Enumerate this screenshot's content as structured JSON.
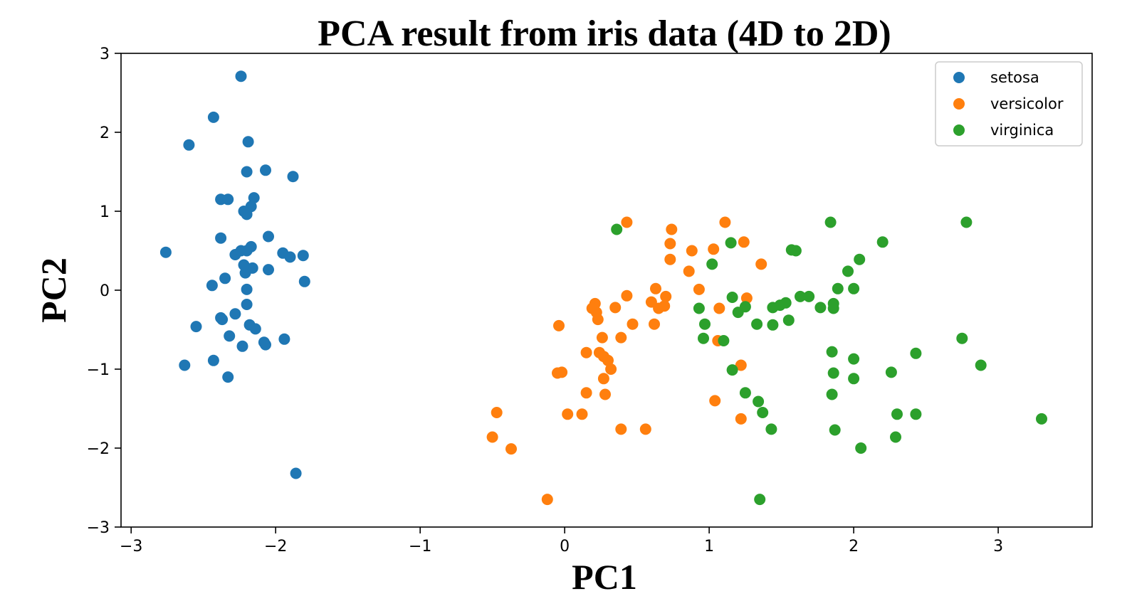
{
  "chart_data": {
    "type": "scatter",
    "title": "PCA result from iris data (4D to 2D)",
    "xlabel": "PC1",
    "ylabel": "PC2",
    "xlim": [
      -3.07,
      3.65
    ],
    "ylim": [
      -3,
      3
    ],
    "xticks": [
      -3,
      -2,
      -1,
      0,
      1,
      2,
      3
    ],
    "yticks": [
      -3,
      -2,
      -1,
      0,
      1,
      2,
      3
    ],
    "xtick_labels": [
      "−3",
      "−2",
      "−1",
      "0",
      "1",
      "2",
      "3"
    ],
    "ytick_labels": [
      "−3",
      "−2",
      "−1",
      "0",
      "1",
      "2",
      "3"
    ],
    "grid": false,
    "legend_position": "top-right",
    "series": [
      {
        "name": "setosa",
        "color": "#1f77b4",
        "points": [
          [
            -2.24,
            2.71
          ],
          [
            -2.43,
            2.19
          ],
          [
            -2.6,
            1.84
          ],
          [
            -2.19,
            1.88
          ],
          [
            -2.2,
            1.5
          ],
          [
            -2.07,
            1.52
          ],
          [
            -1.88,
            1.44
          ],
          [
            -2.38,
            1.15
          ],
          [
            -2.33,
            1.15
          ],
          [
            -2.15,
            1.17
          ],
          [
            -2.17,
            1.06
          ],
          [
            -2.22,
            1.0
          ],
          [
            -2.2,
            0.96
          ],
          [
            -2.76,
            0.48
          ],
          [
            -2.38,
            0.66
          ],
          [
            -2.05,
            0.68
          ],
          [
            -2.28,
            0.45
          ],
          [
            -2.24,
            0.5
          ],
          [
            -2.17,
            0.55
          ],
          [
            -2.2,
            0.5
          ],
          [
            -1.95,
            0.47
          ],
          [
            -1.9,
            0.42
          ],
          [
            -1.81,
            0.44
          ],
          [
            -2.35,
            0.15
          ],
          [
            -2.16,
            0.28
          ],
          [
            -2.21,
            0.22
          ],
          [
            -2.22,
            0.32
          ],
          [
            -2.05,
            0.26
          ],
          [
            -2.44,
            0.06
          ],
          [
            -2.2,
            0.01
          ],
          [
            -1.8,
            0.11
          ],
          [
            -2.2,
            -0.18
          ],
          [
            -2.38,
            -0.35
          ],
          [
            -2.37,
            -0.37
          ],
          [
            -2.28,
            -0.3
          ],
          [
            -2.55,
            -0.46
          ],
          [
            -2.18,
            -0.44
          ],
          [
            -2.14,
            -0.49
          ],
          [
            -2.32,
            -0.58
          ],
          [
            -2.23,
            -0.71
          ],
          [
            -2.08,
            -0.66
          ],
          [
            -2.07,
            -0.69
          ],
          [
            -1.94,
            -0.62
          ],
          [
            -2.63,
            -0.95
          ],
          [
            -2.43,
            -0.89
          ],
          [
            -2.33,
            -1.1
          ],
          [
            -1.86,
            -2.32
          ]
        ]
      },
      {
        "name": "versicolor",
        "color": "#ff7f0e",
        "points": [
          [
            0.43,
            0.86
          ],
          [
            1.11,
            0.86
          ],
          [
            0.74,
            0.77
          ],
          [
            0.73,
            0.59
          ],
          [
            1.24,
            0.61
          ],
          [
            1.03,
            0.52
          ],
          [
            0.88,
            0.5
          ],
          [
            0.73,
            0.39
          ],
          [
            1.36,
            0.33
          ],
          [
            0.86,
            0.24
          ],
          [
            0.93,
            0.01
          ],
          [
            0.63,
            0.02
          ],
          [
            0.43,
            -0.07
          ],
          [
            0.7,
            -0.08
          ],
          [
            1.26,
            -0.1
          ],
          [
            0.6,
            -0.15
          ],
          [
            0.21,
            -0.17
          ],
          [
            0.69,
            -0.2
          ],
          [
            0.19,
            -0.23
          ],
          [
            0.35,
            -0.22
          ],
          [
            0.65,
            -0.23
          ],
          [
            1.07,
            -0.23
          ],
          [
            0.22,
            -0.28
          ],
          [
            0.23,
            -0.37
          ],
          [
            0.47,
            -0.43
          ],
          [
            0.62,
            -0.43
          ],
          [
            -0.04,
            -0.45
          ],
          [
            0.26,
            -0.6
          ],
          [
            0.39,
            -0.6
          ],
          [
            1.06,
            -0.64
          ],
          [
            0.15,
            -0.79
          ],
          [
            0.24,
            -0.79
          ],
          [
            0.27,
            -0.84
          ],
          [
            0.3,
            -0.89
          ],
          [
            0.32,
            -1.0
          ],
          [
            1.22,
            -0.95
          ],
          [
            0.27,
            -1.12
          ],
          [
            -0.05,
            -1.05
          ],
          [
            -0.02,
            -1.04
          ],
          [
            0.15,
            -1.3
          ],
          [
            0.28,
            -1.32
          ],
          [
            1.04,
            -1.4
          ],
          [
            0.02,
            -1.57
          ],
          [
            0.12,
            -1.57
          ],
          [
            -0.47,
            -1.55
          ],
          [
            1.22,
            -1.63
          ],
          [
            -0.5,
            -1.86
          ],
          [
            0.39,
            -1.76
          ],
          [
            0.56,
            -1.76
          ],
          [
            -0.37,
            -2.01
          ],
          [
            -0.12,
            -2.65
          ]
        ]
      },
      {
        "name": "virginica",
        "color": "#2ca02c",
        "points": [
          [
            0.36,
            0.77
          ],
          [
            1.84,
            0.86
          ],
          [
            2.78,
            0.86
          ],
          [
            1.15,
            0.6
          ],
          [
            2.2,
            0.61
          ],
          [
            1.57,
            0.51
          ],
          [
            1.6,
            0.5
          ],
          [
            2.04,
            0.39
          ],
          [
            1.02,
            0.33
          ],
          [
            1.96,
            0.24
          ],
          [
            1.89,
            0.02
          ],
          [
            2.0,
            0.02
          ],
          [
            1.16,
            -0.09
          ],
          [
            1.63,
            -0.08
          ],
          [
            1.69,
            -0.08
          ],
          [
            1.53,
            -0.16
          ],
          [
            1.49,
            -0.19
          ],
          [
            1.86,
            -0.17
          ],
          [
            1.77,
            -0.22
          ],
          [
            1.86,
            -0.23
          ],
          [
            0.93,
            -0.23
          ],
          [
            1.44,
            -0.22
          ],
          [
            1.25,
            -0.21
          ],
          [
            1.2,
            -0.28
          ],
          [
            0.97,
            -0.43
          ],
          [
            1.33,
            -0.43
          ],
          [
            1.55,
            -0.38
          ],
          [
            1.44,
            -0.44
          ],
          [
            0.96,
            -0.61
          ],
          [
            1.1,
            -0.64
          ],
          [
            2.75,
            -0.61
          ],
          [
            1.85,
            -0.78
          ],
          [
            2.43,
            -0.8
          ],
          [
            2.0,
            -0.87
          ],
          [
            2.88,
            -0.95
          ],
          [
            1.16,
            -1.01
          ],
          [
            2.26,
            -1.04
          ],
          [
            1.86,
            -1.05
          ],
          [
            2.0,
            -1.12
          ],
          [
            1.85,
            -1.32
          ],
          [
            1.25,
            -1.3
          ],
          [
            1.34,
            -1.41
          ],
          [
            1.37,
            -1.55
          ],
          [
            2.3,
            -1.57
          ],
          [
            2.43,
            -1.57
          ],
          [
            3.3,
            -1.63
          ],
          [
            1.43,
            -1.76
          ],
          [
            1.87,
            -1.77
          ],
          [
            2.29,
            -1.86
          ],
          [
            2.05,
            -2.0
          ],
          [
            1.35,
            -2.65
          ]
        ]
      }
    ]
  }
}
